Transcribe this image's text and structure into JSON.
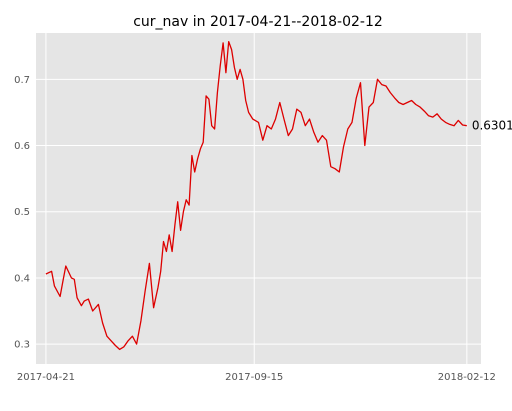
{
  "chart_data": {
    "type": "line",
    "title": "cur_nav in 2017-04-21--2018-02-12",
    "xlabel": "",
    "ylabel": "",
    "grid": true,
    "x_ticks": [
      "2017-04-21",
      "2017-09-15",
      "2018-02-12"
    ],
    "y_ticks": [
      "0.3",
      "0.4",
      "0.5",
      "0.6",
      "0.7"
    ],
    "y_tick_values": [
      0.3,
      0.4,
      0.5,
      0.6,
      0.7
    ],
    "xlim": [
      "2017-04-14",
      "2018-02-22"
    ],
    "ylim": [
      0.27,
      0.77
    ],
    "line_color": "#dd0000",
    "end_label": "0.6301",
    "series": [
      {
        "x": [
          "2017-04-21",
          "2017-04-25",
          "2017-04-27",
          "2017-05-01",
          "2017-05-03",
          "2017-05-05",
          "2017-05-09",
          "2017-05-11",
          "2017-05-13",
          "2017-05-16",
          "2017-05-18",
          "2017-05-21",
          "2017-05-24",
          "2017-05-28",
          "2017-05-31",
          "2017-06-03",
          "2017-06-06",
          "2017-06-09",
          "2017-06-12",
          "2017-06-15",
          "2017-06-18",
          "2017-06-21",
          "2017-06-24",
          "2017-06-27",
          "2017-06-30",
          "2017-07-03",
          "2017-07-06",
          "2017-07-09",
          "2017-07-11",
          "2017-07-13",
          "2017-07-15",
          "2017-07-17",
          "2017-07-19",
          "2017-07-21",
          "2017-07-23",
          "2017-07-25",
          "2017-07-27",
          "2017-07-29",
          "2017-07-31",
          "2017-08-02",
          "2017-08-04",
          "2017-08-06",
          "2017-08-08",
          "2017-08-10",
          "2017-08-12",
          "2017-08-14",
          "2017-08-16",
          "2017-08-18",
          "2017-08-20",
          "2017-08-22",
          "2017-08-24",
          "2017-08-26",
          "2017-08-28",
          "2017-08-30",
          "2017-09-01",
          "2017-09-03",
          "2017-09-05",
          "2017-09-07",
          "2017-09-09",
          "2017-09-11",
          "2017-09-14",
          "2017-09-18",
          "2017-09-21",
          "2017-09-24",
          "2017-09-27",
          "2017-09-30",
          "2017-10-03",
          "2017-10-06",
          "2017-10-09",
          "2017-10-12",
          "2017-10-15",
          "2017-10-18",
          "2017-10-21",
          "2017-10-24",
          "2017-10-27",
          "2017-10-30",
          "2017-11-02",
          "2017-11-05",
          "2017-11-08",
          "2017-11-11",
          "2017-11-14",
          "2017-11-17",
          "2017-11-20",
          "2017-11-23",
          "2017-11-26",
          "2017-11-29",
          "2017-12-02",
          "2017-12-05",
          "2017-12-08",
          "2017-12-11",
          "2017-12-14",
          "2017-12-17",
          "2017-12-20",
          "2017-12-23",
          "2017-12-26",
          "2017-12-29",
          "2018-01-01",
          "2018-01-04",
          "2018-01-07",
          "2018-01-10",
          "2018-01-13",
          "2018-01-16",
          "2018-01-19",
          "2018-01-22",
          "2018-01-25",
          "2018-01-28",
          "2018-01-31",
          "2018-02-03",
          "2018-02-06",
          "2018-02-09",
          "2018-02-12"
        ],
        "y": [
          0.406,
          0.41,
          0.388,
          0.372,
          0.395,
          0.418,
          0.4,
          0.398,
          0.37,
          0.358,
          0.365,
          0.368,
          0.35,
          0.36,
          0.332,
          0.312,
          0.305,
          0.298,
          0.292,
          0.296,
          0.305,
          0.312,
          0.3,
          0.335,
          0.38,
          0.422,
          0.355,
          0.385,
          0.41,
          0.455,
          0.44,
          0.465,
          0.44,
          0.48,
          0.515,
          0.472,
          0.5,
          0.518,
          0.51,
          0.585,
          0.56,
          0.58,
          0.595,
          0.605,
          0.675,
          0.67,
          0.63,
          0.625,
          0.68,
          0.72,
          0.755,
          0.71,
          0.757,
          0.745,
          0.718,
          0.7,
          0.715,
          0.7,
          0.668,
          0.65,
          0.64,
          0.635,
          0.608,
          0.63,
          0.625,
          0.64,
          0.665,
          0.64,
          0.615,
          0.625,
          0.655,
          0.65,
          0.63,
          0.64,
          0.62,
          0.605,
          0.615,
          0.608,
          0.568,
          0.565,
          0.56,
          0.598,
          0.625,
          0.635,
          0.672,
          0.695,
          0.6,
          0.658,
          0.665,
          0.7,
          0.692,
          0.69,
          0.68,
          0.672,
          0.665,
          0.662,
          0.665,
          0.668,
          0.662,
          0.658,
          0.652,
          0.645,
          0.643,
          0.648,
          0.64,
          0.635,
          0.632,
          0.63,
          0.638,
          0.631,
          0.63
        ]
      }
    ]
  }
}
